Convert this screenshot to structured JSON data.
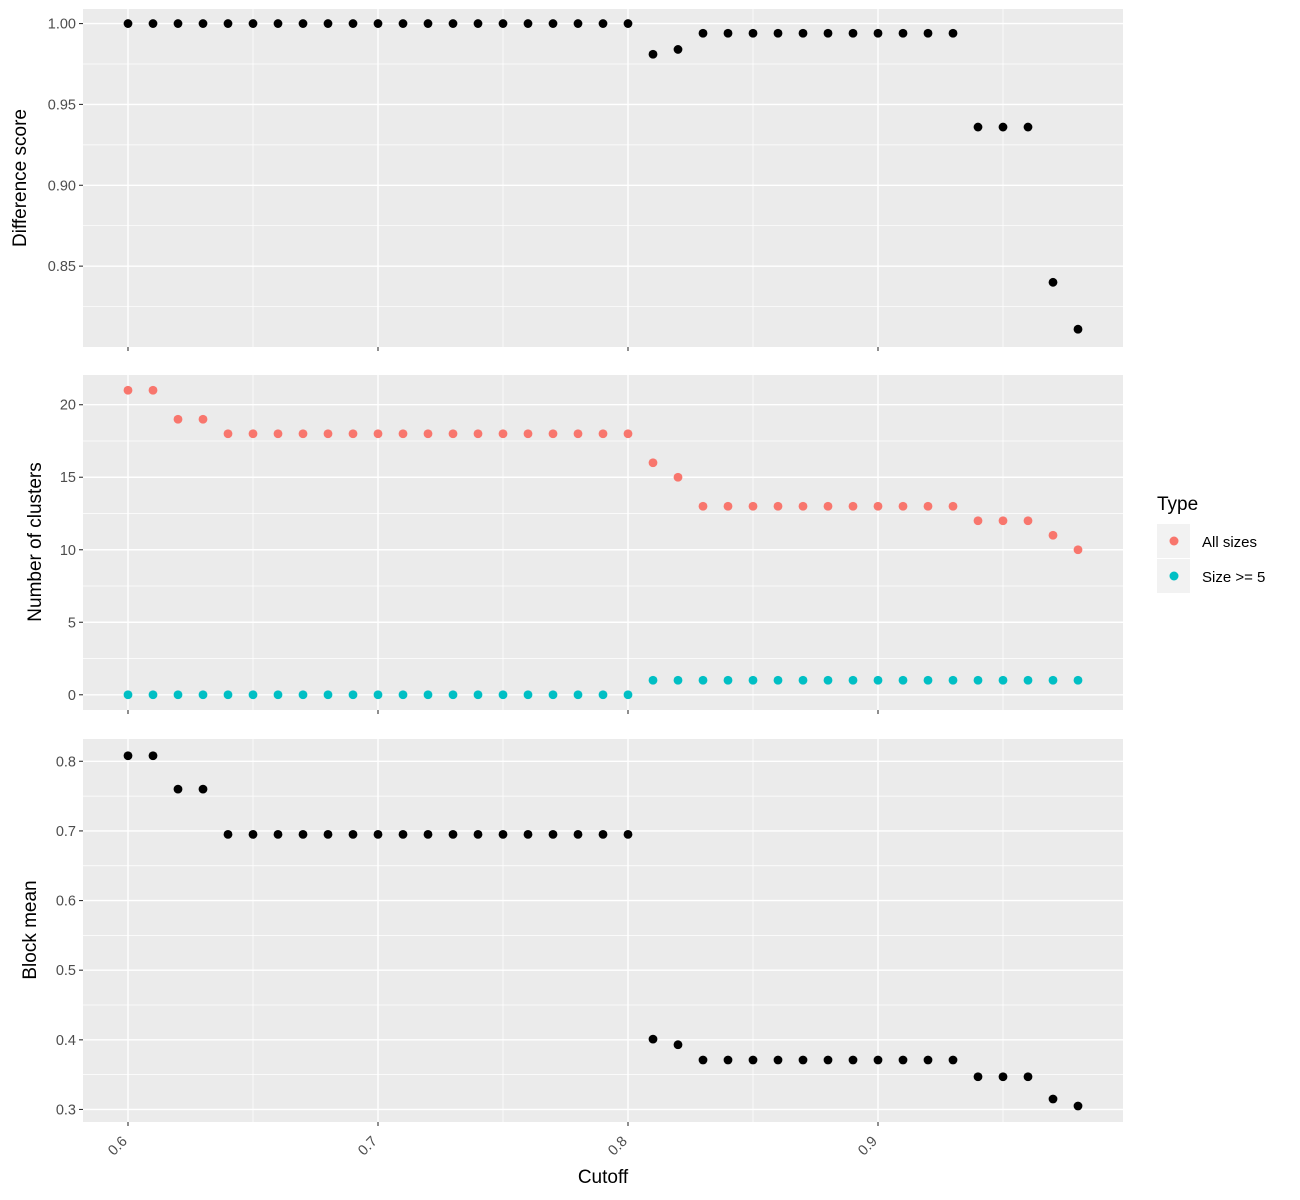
{
  "chart_data": {
    "type": "scatter",
    "x": [
      0.6,
      0.61,
      0.62,
      0.63,
      0.64,
      0.65,
      0.66,
      0.67,
      0.68,
      0.69,
      0.7,
      0.71,
      0.72,
      0.73,
      0.74,
      0.75,
      0.76,
      0.77,
      0.78,
      0.79,
      0.8,
      0.81,
      0.82,
      0.83,
      0.84,
      0.85,
      0.86,
      0.87,
      0.88,
      0.89,
      0.9,
      0.91,
      0.92,
      0.93,
      0.94,
      0.95,
      0.96,
      0.97,
      0.98
    ],
    "xlabel": "Cutoff",
    "xlim": [
      0.582,
      0.998
    ],
    "x_ticks": [
      0.6,
      0.7,
      0.8,
      0.9
    ],
    "x_tick_labels": [
      "0.6",
      "0.7",
      "0.8",
      "0.9"
    ],
    "grid": true,
    "panels": [
      {
        "ylabel": "Difference score",
        "ylim": [
          0.8,
          1.009
        ],
        "y_ticks": [
          0.85,
          0.9,
          0.95,
          1.0
        ],
        "y_tick_labels": [
          "0.85",
          "0.90",
          "0.95",
          "1.00"
        ],
        "series": [
          {
            "color": "#000000",
            "values": [
              1,
              1,
              1,
              1,
              1,
              1,
              1,
              1,
              1,
              1,
              1,
              1,
              1,
              1,
              1,
              1,
              1,
              1,
              1,
              1,
              1,
              0.981,
              0.984,
              0.994,
              0.994,
              0.994,
              0.994,
              0.994,
              0.994,
              0.994,
              0.994,
              0.994,
              0.994,
              0.994,
              0.936,
              0.936,
              0.936,
              0.84,
              0.811
            ]
          }
        ]
      },
      {
        "ylabel": "Number of clusters",
        "ylim": [
          -1.05,
          22.05
        ],
        "y_ticks": [
          0,
          5,
          10,
          15,
          20
        ],
        "y_tick_labels": [
          "0",
          "5",
          "10",
          "15",
          "20"
        ],
        "series": [
          {
            "name": "All sizes",
            "color": "#f8766d",
            "values": [
              21,
              21,
              19,
              19,
              18,
              18,
              18,
              18,
              18,
              18,
              18,
              18,
              18,
              18,
              18,
              18,
              18,
              18,
              18,
              18,
              18,
              16,
              15,
              13,
              13,
              13,
              13,
              13,
              13,
              13,
              13,
              13,
              13,
              13,
              12,
              12,
              12,
              11,
              10
            ]
          },
          {
            "name": "Size >= 5",
            "color": "#00bfc4",
            "values": [
              0,
              0,
              0,
              0,
              0,
              0,
              0,
              0,
              0,
              0,
              0,
              0,
              0,
              0,
              0,
              0,
              0,
              0,
              0,
              0,
              0,
              1,
              1,
              1,
              1,
              1,
              1,
              1,
              1,
              1,
              1,
              1,
              1,
              1,
              1,
              1,
              1,
              1,
              1
            ]
          }
        ]
      },
      {
        "ylabel": "Block mean",
        "ylim": [
          0.282,
          0.832
        ],
        "y_ticks": [
          0.3,
          0.4,
          0.5,
          0.6,
          0.7,
          0.8
        ],
        "y_tick_labels": [
          "0.3",
          "0.4",
          "0.5",
          "0.6",
          "0.7",
          "0.8"
        ],
        "series": [
          {
            "color": "#000000",
            "values": [
              0.808,
              0.808,
              0.76,
              0.76,
              0.695,
              0.695,
              0.695,
              0.695,
              0.695,
              0.695,
              0.695,
              0.695,
              0.695,
              0.695,
              0.695,
              0.695,
              0.695,
              0.695,
              0.695,
              0.695,
              0.695,
              0.401,
              0.393,
              0.371,
              0.371,
              0.371,
              0.371,
              0.371,
              0.371,
              0.371,
              0.371,
              0.371,
              0.371,
              0.371,
              0.347,
              0.347,
              0.347,
              0.315,
              0.305
            ]
          }
        ]
      }
    ],
    "legend": {
      "title": "Type",
      "placement": "right",
      "items": [
        {
          "label": "All sizes",
          "color": "#f8766d"
        },
        {
          "label": "Size >= 5",
          "color": "#00bfc4"
        }
      ]
    }
  }
}
